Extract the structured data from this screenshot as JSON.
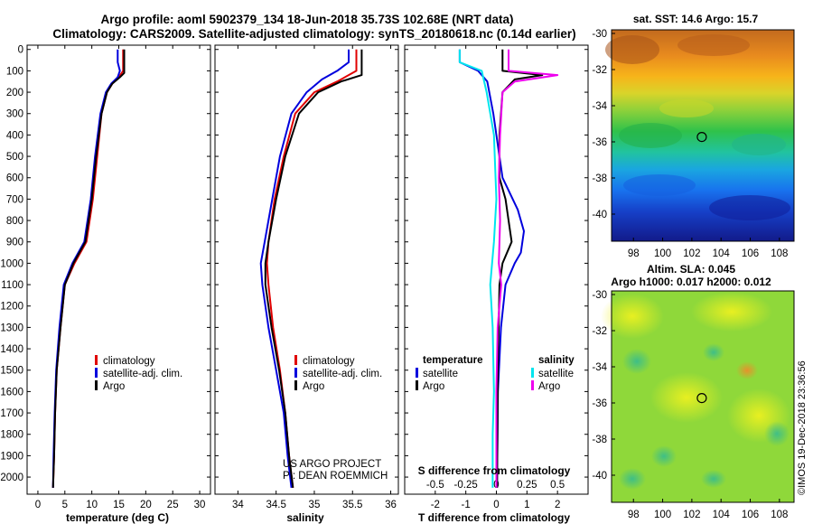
{
  "header": {
    "line1": "Argo profile: aoml 5902379_134 18-Jun-2018 35.73S 102.68E (NRT data)",
    "line2": "Climatology: CARS2009. Satellite-adjusted climatology: synTS_20180618.nc (0.14d earlier)"
  },
  "colors": {
    "red": "#e00000",
    "blue": "#0000dd",
    "black": "#000000",
    "cyan": "#00e5ee",
    "magenta": "#ee00ee"
  },
  "chart_data": [
    {
      "type": "line",
      "id": "temperature",
      "xlabel": "temperature (deg C)",
      "ylabel": "",
      "xlim": [
        -2,
        32
      ],
      "ylim": [
        2080,
        -20
      ],
      "xticks": [
        "0",
        "5",
        "10",
        "15",
        "20",
        "25",
        "30"
      ],
      "xtick_values": [
        0,
        5,
        10,
        15,
        20,
        25,
        30
      ],
      "yticks": [
        "0",
        "100",
        "200",
        "300",
        "400",
        "500",
        "600",
        "700",
        "800",
        "900",
        "1000",
        "1100",
        "1200",
        "1300",
        "1400",
        "1500",
        "1600",
        "1700",
        "1800",
        "1900",
        "2000"
      ],
      "ytick_values": [
        0,
        100,
        200,
        300,
        400,
        500,
        600,
        700,
        800,
        900,
        1000,
        1100,
        1200,
        1300,
        1400,
        1500,
        1600,
        1700,
        1800,
        1900,
        2000
      ],
      "legend": [
        "climatology",
        "satellite-adj. clim.",
        "Argo"
      ],
      "series": [
        {
          "name": "climatology",
          "color": "red",
          "points": [
            [
              15.8,
              0
            ],
            [
              15.8,
              100
            ],
            [
              15.0,
              130
            ],
            [
              13.8,
              160
            ],
            [
              12.8,
              200
            ],
            [
              11.8,
              300
            ],
            [
              11.0,
              500
            ],
            [
              10.2,
              700
            ],
            [
              9.0,
              900
            ],
            [
              6.8,
              1000
            ],
            [
              5.0,
              1100
            ],
            [
              4.2,
              1300
            ],
            [
              3.5,
              1500
            ],
            [
              3.2,
              1700
            ],
            [
              3.0,
              1900
            ],
            [
              2.8,
              2050
            ]
          ]
        },
        {
          "name": "satellite-adj. clim.",
          "color": "blue",
          "points": [
            [
              14.8,
              0
            ],
            [
              14.8,
              60
            ],
            [
              15.2,
              100
            ],
            [
              14.8,
              130
            ],
            [
              13.6,
              160
            ],
            [
              12.6,
              200
            ],
            [
              11.6,
              300
            ],
            [
              10.6,
              500
            ],
            [
              9.8,
              700
            ],
            [
              8.6,
              900
            ],
            [
              6.4,
              1000
            ],
            [
              4.8,
              1100
            ],
            [
              4.0,
              1300
            ],
            [
              3.4,
              1500
            ],
            [
              3.1,
              1700
            ],
            [
              2.9,
              1900
            ],
            [
              2.8,
              2050
            ]
          ]
        },
        {
          "name": "Argo",
          "color": "black",
          "points": [
            [
              16.0,
              0
            ],
            [
              16.0,
              110
            ],
            [
              15.2,
              130
            ],
            [
              13.8,
              160
            ],
            [
              12.8,
              200
            ],
            [
              11.8,
              300
            ],
            [
              10.8,
              500
            ],
            [
              10.0,
              700
            ],
            [
              8.8,
              900
            ],
            [
              6.6,
              1000
            ],
            [
              5.0,
              1100
            ],
            [
              4.2,
              1300
            ],
            [
              3.5,
              1500
            ],
            [
              3.2,
              1700
            ],
            [
              3.0,
              1900
            ],
            [
              2.8,
              2050
            ]
          ]
        }
      ]
    },
    {
      "type": "line",
      "id": "salinity",
      "xlabel": "salinity",
      "xlim": [
        33.7,
        36.1
      ],
      "ylim": [
        2080,
        -20
      ],
      "xticks": [
        "34",
        "34.5",
        "35",
        "35.5",
        "36"
      ],
      "xtick_values": [
        34,
        34.5,
        35,
        35.5,
        36
      ],
      "legend": [
        "climatology",
        "satellite-adj. clim.",
        "Argo"
      ],
      "credit": [
        "US ARGO PROJECT",
        "PI: DEAN ROEMMICH"
      ],
      "series": [
        {
          "name": "climatology",
          "color": "red",
          "points": [
            [
              35.55,
              0
            ],
            [
              35.55,
              100
            ],
            [
              35.3,
              150
            ],
            [
              35.0,
              200
            ],
            [
              34.75,
              300
            ],
            [
              34.6,
              500
            ],
            [
              34.48,
              700
            ],
            [
              34.4,
              900
            ],
            [
              34.38,
              1000
            ],
            [
              34.4,
              1100
            ],
            [
              34.46,
              1300
            ],
            [
              34.55,
              1500
            ],
            [
              34.62,
              1700
            ],
            [
              34.67,
              1900
            ],
            [
              34.72,
              2050
            ]
          ]
        },
        {
          "name": "satellite-adj. clim.",
          "color": "blue",
          "points": [
            [
              35.45,
              0
            ],
            [
              35.45,
              60
            ],
            [
              35.3,
              100
            ],
            [
              35.1,
              140
            ],
            [
              34.9,
              200
            ],
            [
              34.7,
              300
            ],
            [
              34.55,
              500
            ],
            [
              34.45,
              700
            ],
            [
              34.35,
              900
            ],
            [
              34.3,
              1000
            ],
            [
              34.32,
              1100
            ],
            [
              34.4,
              1300
            ],
            [
              34.5,
              1500
            ],
            [
              34.6,
              1700
            ],
            [
              34.65,
              1900
            ],
            [
              34.7,
              2050
            ]
          ]
        },
        {
          "name": "Argo",
          "color": "black",
          "points": [
            [
              35.62,
              0
            ],
            [
              35.62,
              120
            ],
            [
              35.35,
              150
            ],
            [
              35.05,
              200
            ],
            [
              34.8,
              300
            ],
            [
              34.62,
              500
            ],
            [
              34.5,
              700
            ],
            [
              34.4,
              900
            ],
            [
              34.36,
              1000
            ],
            [
              34.36,
              1100
            ],
            [
              34.44,
              1300
            ],
            [
              34.54,
              1500
            ],
            [
              34.62,
              1700
            ],
            [
              34.67,
              1900
            ],
            [
              34.72,
              2050
            ]
          ]
        }
      ]
    },
    {
      "type": "line",
      "id": "difference",
      "xlabel": "T difference from climatology",
      "xlabel_top": "S difference from climatology",
      "xlim": [
        -3,
        3
      ],
      "ylim": [
        2080,
        -20
      ],
      "xticks": [
        "-2",
        "-1",
        "0",
        "1",
        "2"
      ],
      "xtick_values": [
        -2,
        -1,
        0,
        1,
        2
      ],
      "sticks": [
        "-0.5",
        "-0.25",
        "0",
        "0.25",
        "0.5"
      ],
      "stick_values": [
        -0.5,
        -0.25,
        0,
        0.25,
        0.5
      ],
      "legend_left_title": "temperature",
      "legend_right_title": "salinity",
      "legend_left": [
        "satellite",
        "Argo"
      ],
      "legend_right": [
        "satellite",
        "Argo"
      ],
      "series": [
        {
          "name": "T satellite",
          "color": "blue",
          "points": [
            [
              -1.2,
              0
            ],
            [
              -1.2,
              60
            ],
            [
              -0.6,
              100
            ],
            [
              -0.3,
              150
            ],
            [
              -0.1,
              300
            ],
            [
              0.2,
              600
            ],
            [
              0.7,
              750
            ],
            [
              0.9,
              850
            ],
            [
              0.8,
              950
            ],
            [
              0.6,
              1000
            ],
            [
              0.3,
              1100
            ],
            [
              0.15,
              1300
            ],
            [
              0.05,
              1600
            ],
            [
              0.02,
              2050
            ]
          ]
        },
        {
          "name": "T Argo",
          "color": "black",
          "points": [
            [
              0.2,
              0
            ],
            [
              0.2,
              100
            ],
            [
              1.5,
              120
            ],
            [
              0.6,
              140
            ],
            [
              0.2,
              200
            ],
            [
              0.1,
              400
            ],
            [
              0.1,
              600
            ],
            [
              0.3,
              700
            ],
            [
              0.4,
              800
            ],
            [
              0.5,
              900
            ],
            [
              0.2,
              1000
            ],
            [
              0.1,
              1100
            ],
            [
              0.05,
              1500
            ],
            [
              0.02,
              2050
            ]
          ]
        },
        {
          "name": "S satellite",
          "color": "cyan",
          "points": [
            [
              -0.3,
              0
            ],
            [
              -0.3,
              60
            ],
            [
              -0.12,
              100
            ],
            [
              -0.08,
              200
            ],
            [
              -0.02,
              400
            ],
            [
              0,
              700
            ],
            [
              -0.02,
              900
            ],
            [
              -0.05,
              1100
            ],
            [
              -0.03,
              1300
            ],
            [
              -0.02,
              1600
            ],
            [
              -0.03,
              1800
            ],
            [
              -0.03,
              2050
            ]
          ]
        },
        {
          "name": "S Argo",
          "color": "magenta",
          "points": [
            [
              0.1,
              0
            ],
            [
              0.1,
              100
            ],
            [
              0.5,
              120
            ],
            [
              0.15,
              150
            ],
            [
              0.05,
              200
            ],
            [
              0.03,
              400
            ],
            [
              0.02,
              600
            ],
            [
              0.03,
              800
            ],
            [
              0.02,
              1000
            ],
            [
              0.04,
              1100
            ],
            [
              0.01,
              1300
            ],
            [
              0.0,
              1600
            ],
            [
              0.0,
              2050
            ]
          ]
        }
      ]
    },
    {
      "type": "heatmap",
      "id": "sst-map",
      "title": "sat. SST: 14.6 Argo: 15.7",
      "xticks": [
        "98",
        "100",
        "102",
        "104",
        "106",
        "108"
      ],
      "xtick_values": [
        98,
        100,
        102,
        104,
        106,
        108
      ],
      "yticks": [
        "-30",
        "-32",
        "-34",
        "-36",
        "-38",
        "-40"
      ],
      "ytick_values": [
        -30,
        -32,
        -34,
        -36,
        -38,
        -40
      ],
      "xlim": [
        96.5,
        109
      ],
      "ylim": [
        -41.5,
        -29.8
      ],
      "marker": [
        102.68,
        -35.73
      ]
    },
    {
      "type": "heatmap",
      "id": "sla-map",
      "title": "Altim. SLA: 0.045",
      "subtitle": "Argo h1000: 0.017 h2000: 0.012",
      "xticks": [
        "98",
        "100",
        "102",
        "104",
        "106",
        "108"
      ],
      "xtick_values": [
        98,
        100,
        102,
        104,
        106,
        108
      ],
      "yticks": [
        "-30",
        "-32",
        "-34",
        "-36",
        "-38",
        "-40"
      ],
      "ytick_values": [
        -30,
        -32,
        -34,
        -36,
        -38,
        -40
      ],
      "xlim": [
        96.5,
        109
      ],
      "ylim": [
        -41.5,
        -29.8
      ],
      "marker": [
        102.68,
        -35.73
      ]
    }
  ],
  "footer": {
    "stamp": "©IMOS 19-Dec-2018 23:36:56"
  }
}
